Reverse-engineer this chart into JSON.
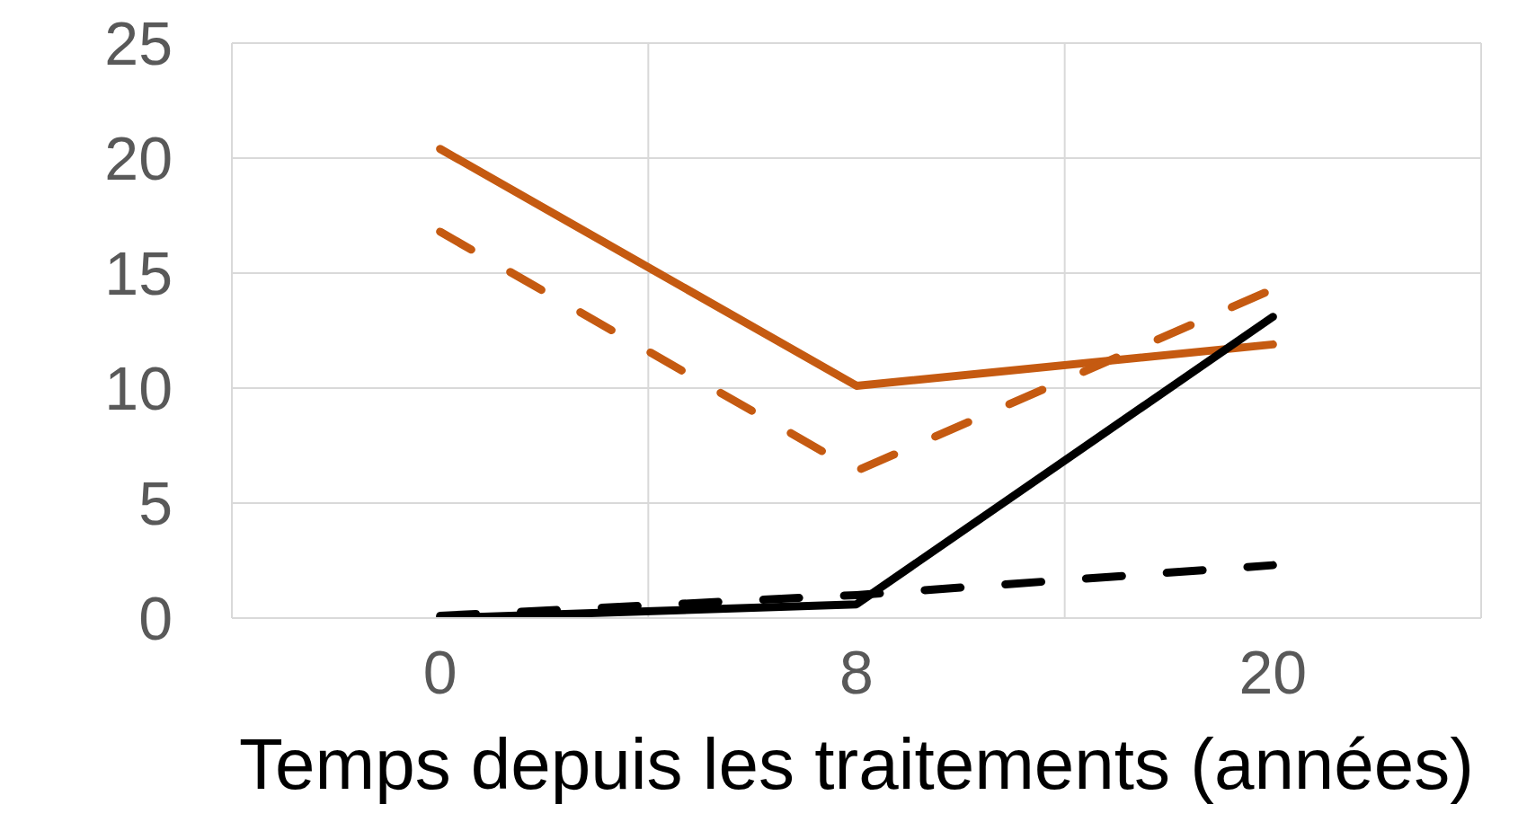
{
  "chart_data": {
    "type": "line",
    "xlabel": "Temps depuis les traitements (années)",
    "categories": [
      "0",
      "8",
      "20"
    ],
    "series": [
      {
        "color": "#c55a11",
        "line_style": "solid",
        "values": [
          20.4,
          10.1,
          11.9
        ]
      },
      {
        "color": "#c55a11",
        "line_style": "dashed",
        "values": [
          16.8,
          6.4,
          14.3
        ]
      },
      {
        "color": "#000000",
        "line_style": "solid",
        "values": [
          0,
          0.6,
          13.1
        ]
      },
      {
        "color": "#000000",
        "line_style": "dashed",
        "values": [
          0.1,
          1.0,
          2.3
        ]
      }
    ],
    "ylim": [
      0,
      25
    ],
    "yticks": [
      0,
      5,
      10,
      15,
      20,
      25
    ],
    "grid": true,
    "marker": "none"
  }
}
